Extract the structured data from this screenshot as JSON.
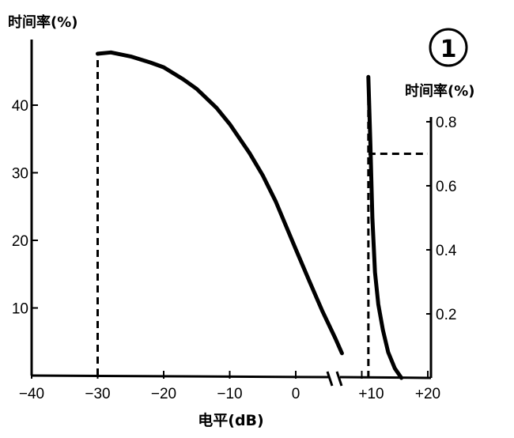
{
  "chart_data": {
    "type": "line",
    "badge": "1",
    "xlabel": "电平(dB)",
    "x_ticks": [
      "−40",
      "−30",
      "−20",
      "−10",
      "0",
      "+10",
      "+20"
    ],
    "x_tick_values": [
      -40,
      -30,
      -20,
      -10,
      0,
      10,
      20
    ],
    "xlim": [
      -40,
      20
    ],
    "axis_break_at": 5,
    "left_axis": {
      "label": "时间率(%)",
      "ticks": [
        "10",
        "20",
        "30",
        "40"
      ],
      "tick_values": [
        10,
        20,
        30,
        40
      ],
      "ylim": [
        0,
        48
      ]
    },
    "right_axis": {
      "label": "时间率(%)",
      "ticks": [
        "0.2",
        "0.4",
        "0.6",
        "0.8"
      ],
      "tick_values": [
        0.2,
        0.4,
        0.6,
        0.8
      ],
      "ylim": [
        0,
        0.8
      ],
      "x_range": [
        10,
        20
      ]
    },
    "series": [
      {
        "axis": "left",
        "x": [
          -30,
          -28,
          -25,
          -22,
          -20,
          -17,
          -15,
          -12,
          -10,
          -7,
          -5,
          -3,
          0,
          2,
          4,
          6,
          7
        ],
        "y": [
          47.6,
          47.8,
          47.2,
          46.3,
          45.6,
          43.8,
          42.4,
          39.6,
          37.2,
          32.9,
          29.6,
          25.7,
          18.7,
          14.1,
          9.6,
          5.5,
          3.3
        ]
      },
      {
        "axis": "right",
        "x": [
          11,
          11.3,
          11.6,
          12.0,
          12.5,
          13.2,
          14.0,
          15.0,
          16.0
        ],
        "y": [
          0.94,
          0.73,
          0.5,
          0.33,
          0.23,
          0.15,
          0.08,
          0.03,
          0.0
        ]
      }
    ],
    "reference_lines": [
      {
        "axis": "left",
        "type": "vertical",
        "x": -30,
        "from_y": 0,
        "to_y": 47.6
      },
      {
        "axis": "right",
        "type": "vertical",
        "x": 11,
        "from_y": 0,
        "to_y": 0.94
      },
      {
        "axis": "right",
        "type": "horizontal",
        "y": 0.7,
        "from_x": 11,
        "to_x": 20
      }
    ]
  }
}
